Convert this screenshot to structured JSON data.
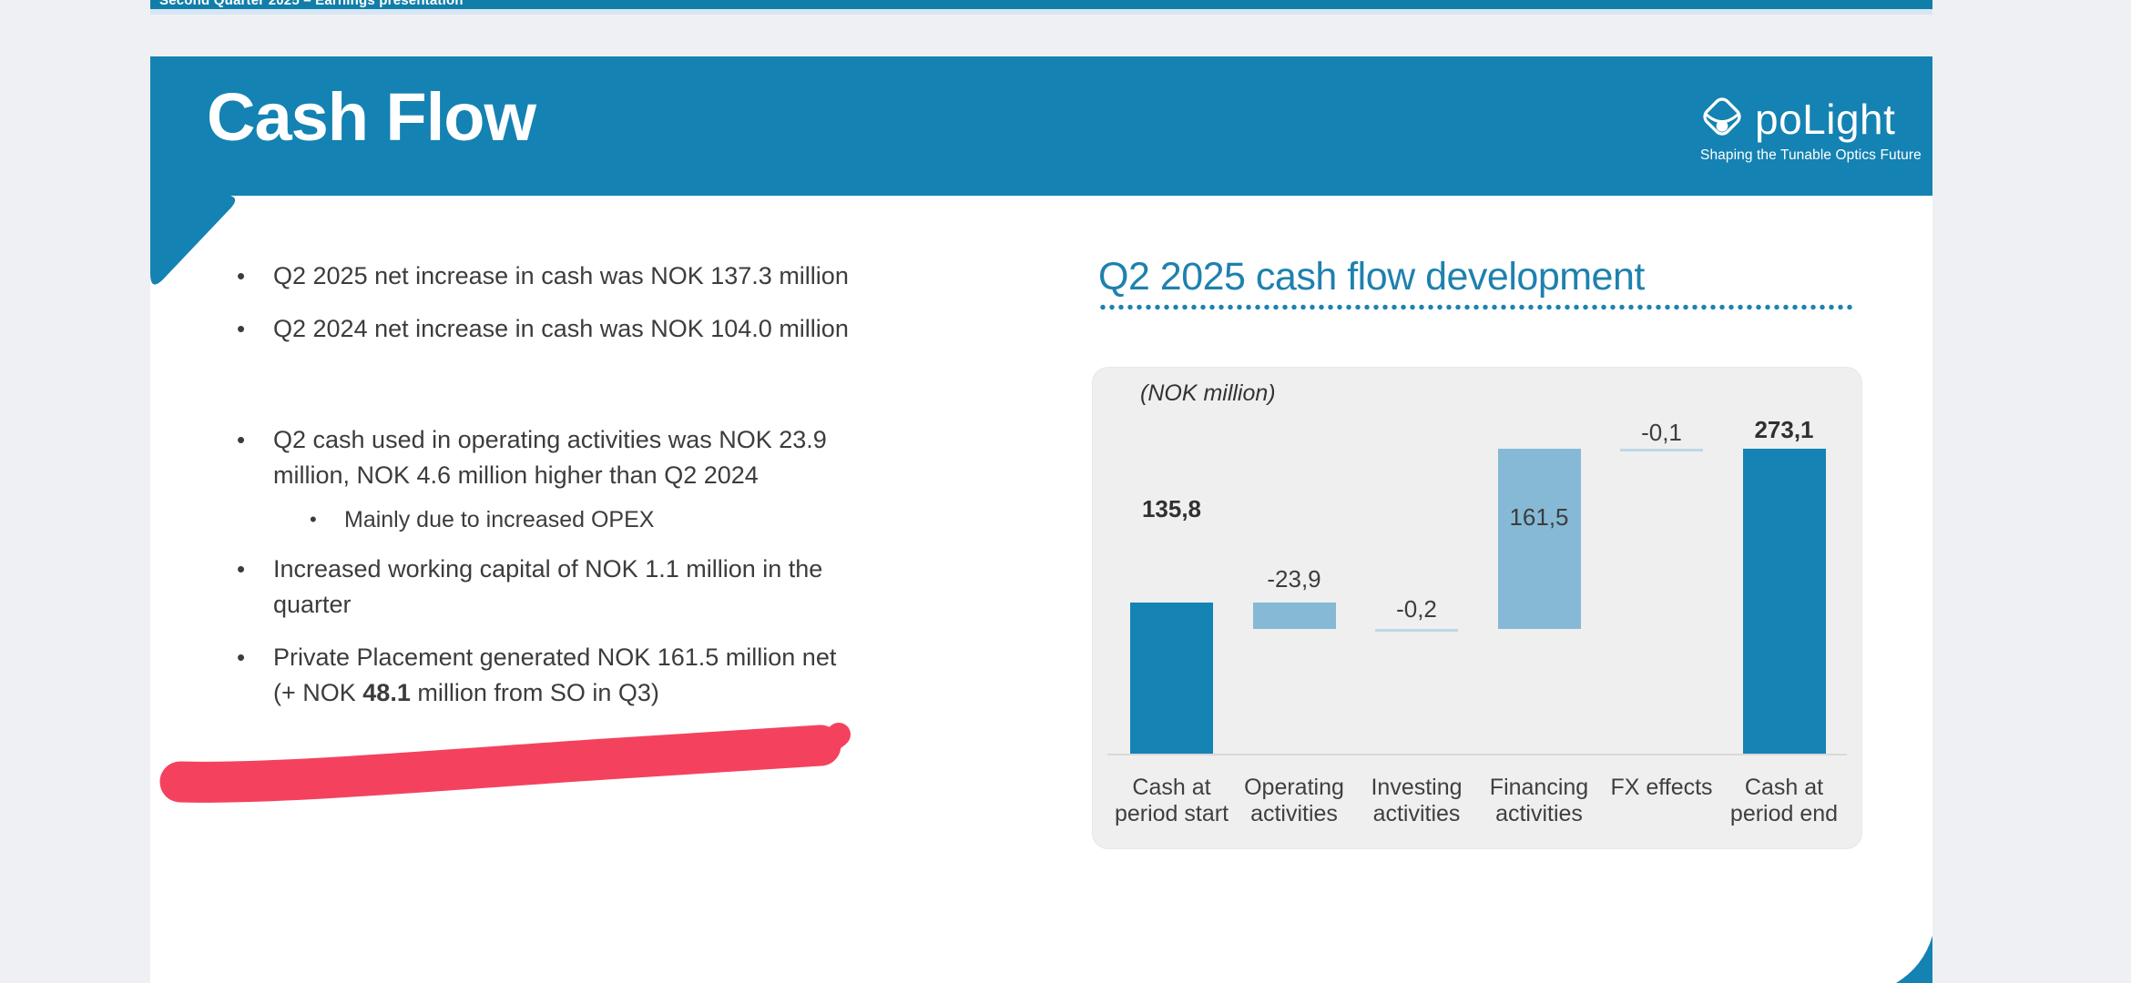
{
  "viewer": {
    "top_bar_text": "Second Quarter 2025 – Earnings presentation"
  },
  "slide": {
    "title": "Cash Flow",
    "logo": {
      "name": "poLight",
      "tagline": "Shaping the Tunable Optics Future"
    },
    "bullets": [
      {
        "text": "Q2 2025 net increase in cash was NOK 137.3 million"
      },
      {
        "text": "Q2 2024 net increase in cash was NOK 104.0 million"
      },
      {
        "text": "Q2 cash used in operating activities was NOK 23.9 million, NOK 4.6 million higher than Q2 2024",
        "sub": [
          "Mainly due to increased OPEX"
        ]
      },
      {
        "text": "Increased working capital of NOK 1.1 million in the quarter"
      },
      {
        "line1": "Private Placement generated NOK 161.5 million net",
        "line2_pre": "(+ NOK ",
        "line2_bold": "48.1",
        "line2_post": " million from SO in Q3)"
      }
    ],
    "chart_heading": "Q2 2025 cash flow development"
  },
  "chart_data": {
    "type": "bar",
    "subtype": "waterfall",
    "title": "Q2 2025 cash flow development",
    "unit_note": "(NOK million)",
    "ylabel": "NOK million",
    "grid": false,
    "legend": "none",
    "categories": [
      "Cash at period start",
      "Operating activities",
      "Investing activities",
      "Financing activities",
      "FX effects",
      "Cash at period end"
    ],
    "label_lines": [
      [
        "Cash at",
        "period start"
      ],
      [
        "Operating",
        "activities"
      ],
      [
        "Investing",
        "activities"
      ],
      [
        "Financing",
        "activities"
      ],
      [
        "FX effects"
      ],
      [
        "Cash at",
        "period end"
      ]
    ],
    "points": [
      {
        "category": "Cash at period start",
        "value": 135.8,
        "display": "135,8",
        "kind": "total"
      },
      {
        "category": "Operating activities",
        "value": -23.9,
        "display": "-23,9",
        "kind": "delta"
      },
      {
        "category": "Investing activities",
        "value": -0.2,
        "display": "-0,2",
        "kind": "delta"
      },
      {
        "category": "Financing activities",
        "value": 161.5,
        "display": "161,5",
        "kind": "delta"
      },
      {
        "category": "FX effects",
        "value": -0.1,
        "display": "-0,1",
        "kind": "delta"
      },
      {
        "category": "Cash at period end",
        "value": 273.1,
        "display": "273,1",
        "kind": "total"
      }
    ],
    "colors": {
      "total": "#1583b4",
      "delta": "#85b9d6",
      "hairline": "#bdd7e4"
    },
    "ylim": [
      0,
      290
    ]
  },
  "theme": {
    "accent_teal": "#1482b2",
    "title_teal": "#1e81ae",
    "marker_red": "#f4425e",
    "panel_gray": "#efeff0",
    "page_bg": "#eef0f4"
  }
}
